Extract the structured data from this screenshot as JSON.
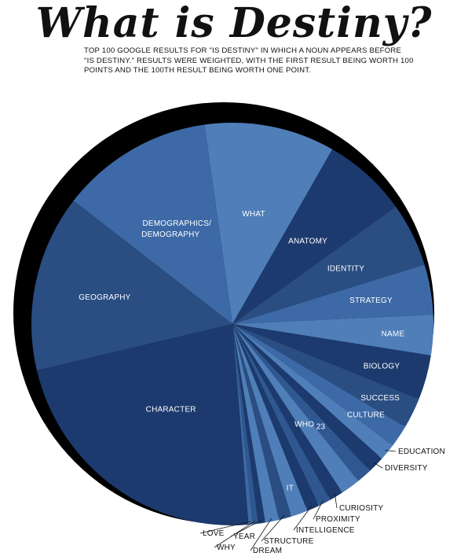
{
  "title": "What is Destiny?",
  "subtitle": "TOP 100 GOOGLE RESULTS FOR \"IS DESTINY\" IN WHICH A NOUN APPEARS BEFORE \"IS DESTINY.\" RESULTS WERE WEIGHTED, WITH THE FIRST RESULT BEING WORTH 100 POINTS AND THE 100TH RESULT BEING WORTH ONE POINT.",
  "colors": {
    "shadow": "#000000",
    "palette": [
      "#1c3a6e",
      "#2a4d82",
      "#3d6aa6",
      "#4f7eb8",
      "#2f5790"
    ]
  },
  "chart_data": {
    "type": "pie",
    "title": "What is Destiny?",
    "slices": [
      {
        "label": "WHAT",
        "value": 9.4
      },
      {
        "label": "ANATOMY",
        "value": 6.1
      },
      {
        "label": "IDENTITY",
        "value": 4.6
      },
      {
        "label": "STRATEGY",
        "value": 3.6
      },
      {
        "label": "NAME",
        "value": 2.9
      },
      {
        "label": "BIOLOGY",
        "value": 3.2
      },
      {
        "label": "SUCCESS",
        "value": 2.2
      },
      {
        "label": "CULTURE",
        "value": 1.6
      },
      {
        "label": "EDUCATION",
        "value": 1.2
      },
      {
        "label": "DIVERSITY",
        "value": 1.2
      },
      {
        "label": "23",
        "value": 1.1
      },
      {
        "label": "WHO",
        "value": 1.4
      },
      {
        "label": "CURIOSITY",
        "value": 1.0
      },
      {
        "label": "PROXIMITY",
        "value": 0.9
      },
      {
        "label": "INTELLIGENCE",
        "value": 0.9
      },
      {
        "label": "IT",
        "value": 1.2
      },
      {
        "label": "STRUCTURE",
        "value": 0.9
      },
      {
        "label": "DREAM",
        "value": 1.0
      },
      {
        "label": "YEAR",
        "value": 0.5
      },
      {
        "label": "WHY",
        "value": 0.4
      },
      {
        "label": "LOVE",
        "value": 0.3
      },
      {
        "label": "CHARACTER",
        "value": 20.2
      },
      {
        "label": "GEOGRAPHY",
        "value": 12.7
      },
      {
        "label": "DEMOGRAPHICS/ DEMOGRAPHY",
        "value": 11.0
      }
    ]
  }
}
